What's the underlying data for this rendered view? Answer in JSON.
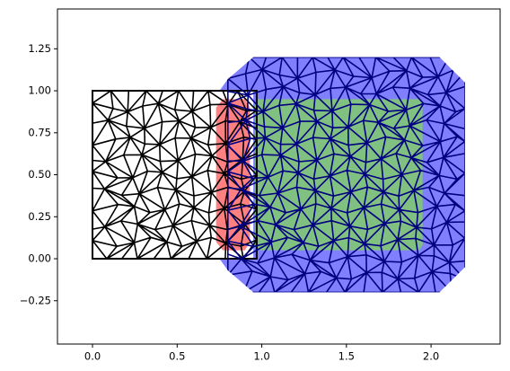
{
  "chart_data": {
    "type": "mesh",
    "xlim": [
      -0.207,
      2.408
    ],
    "ylim": [
      -0.508,
      1.487
    ],
    "xticks": [
      {
        "value": 0,
        "label": "0.0"
      },
      {
        "value": 0.5,
        "label": "0.5"
      },
      {
        "value": 1,
        "label": "1.0"
      },
      {
        "value": 1.5,
        "label": "1.5"
      },
      {
        "value": 2,
        "label": "2.0"
      }
    ],
    "yticks": [
      {
        "value": -0.25,
        "label": "−0.25"
      },
      {
        "value": 0,
        "label": "0.00"
      },
      {
        "value": 0.25,
        "label": "0.25"
      },
      {
        "value": 0.5,
        "label": "0.50"
      },
      {
        "value": 0.75,
        "label": "0.75"
      },
      {
        "value": 1,
        "label": "1.00"
      },
      {
        "value": 1.25,
        "label": "1.25"
      }
    ],
    "regions": [
      {
        "color": "#8080ff",
        "x": [
          0.95,
          2.05,
          2.2,
          2.2,
          2.05,
          0.95,
          0.8,
          0.75,
          0.75,
          0.8
        ],
        "y": [
          1.2,
          1.2,
          1.05,
          -0.05,
          -0.2,
          -0.2,
          -0.07,
          0.0,
          1.0,
          1.07
        ]
      },
      {
        "color": "#ffffff",
        "x": [
          0.0,
          0.95,
          0.95,
          0.0
        ],
        "y": [
          0.0,
          0.0,
          1.0,
          1.0
        ]
      },
      {
        "color": "#ff8080",
        "x": [
          0.77,
          0.9,
          0.93,
          0.93,
          0.9,
          0.77,
          0.73,
          0.73
        ],
        "y": [
          0.95,
          0.95,
          0.9,
          0.1,
          0.05,
          0.05,
          0.1,
          0.9
        ]
      },
      {
        "color": "#80c080",
        "x": [
          0.97,
          1.93,
          1.95,
          1.95,
          1.93,
          0.97,
          0.96,
          0.96
        ],
        "y": [
          0.95,
          0.95,
          0.92,
          0.08,
          0.05,
          0.05,
          0.08,
          0.92
        ]
      }
    ],
    "meshes": [
      {
        "color": "#000000",
        "x": [
          0,
          0.97
        ],
        "y": [
          0,
          1
        ]
      },
      {
        "color": "#000080",
        "x": [
          0.8,
          2.2
        ],
        "y": [
          -0.2,
          1.2
        ]
      }
    ]
  }
}
